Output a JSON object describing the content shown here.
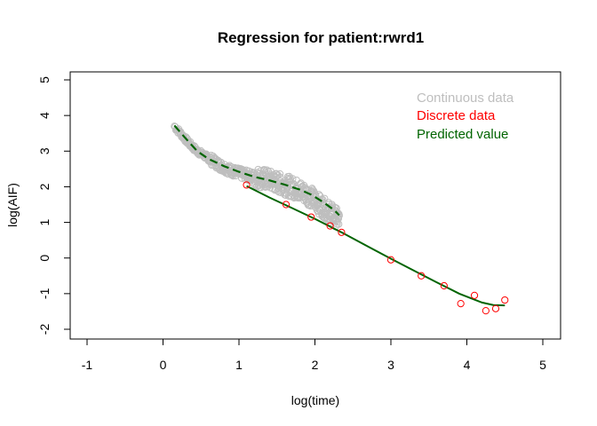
{
  "chart_data": {
    "type": "scatter",
    "title": "Regression for patient:rwrd1",
    "xlabel": "log(time)",
    "ylabel": "log(AIF)",
    "xlim": [
      -1,
      5
    ],
    "ylim": [
      -2,
      5
    ],
    "x_ticks": [
      -1,
      0,
      1,
      2,
      3,
      4,
      5
    ],
    "y_ticks": [
      -2,
      -1,
      0,
      1,
      2,
      3,
      4,
      5
    ],
    "grid": false,
    "legend_placement": "top-right",
    "legend": [
      {
        "label": "Continuous data",
        "color": "#bebebe"
      },
      {
        "label": "Discrete data",
        "color": "#ff0000"
      },
      {
        "label": "Predicted value",
        "color": "#006400"
      }
    ],
    "series": [
      {
        "name": "Continuous data",
        "kind": "points",
        "color": "#bebebe",
        "trend": [
          [
            0.15,
            3.7
          ],
          [
            0.25,
            3.45
          ],
          [
            0.35,
            3.2
          ],
          [
            0.45,
            3.0
          ],
          [
            0.6,
            2.8
          ],
          [
            0.75,
            2.6
          ],
          [
            0.9,
            2.45
          ],
          [
            1.05,
            2.35
          ],
          [
            1.2,
            2.28
          ],
          [
            1.35,
            2.22
          ],
          [
            1.5,
            2.12
          ],
          [
            1.65,
            2.02
          ],
          [
            1.8,
            1.9
          ],
          [
            1.95,
            1.72
          ],
          [
            2.05,
            1.52
          ],
          [
            2.15,
            1.35
          ],
          [
            2.25,
            1.2
          ],
          [
            2.32,
            1.05
          ]
        ]
      },
      {
        "name": "Discrete data",
        "kind": "points",
        "color": "#ff0000",
        "x": [
          1.1,
          1.62,
          1.95,
          2.2,
          2.35,
          3.0,
          3.4,
          3.7,
          3.92,
          4.1,
          4.25,
          4.38,
          4.5
        ],
        "y": [
          2.05,
          1.5,
          1.15,
          0.9,
          0.72,
          -0.05,
          -0.5,
          -0.78,
          -1.28,
          -1.05,
          -1.48,
          -1.42,
          -1.18
        ]
      },
      {
        "name": "Predicted value",
        "kind": "line",
        "color": "#006400",
        "x": [
          1.1,
          1.4,
          1.7,
          2.0,
          2.35,
          2.7,
          3.0,
          3.3,
          3.6,
          3.9,
          4.2,
          4.35,
          4.5
        ],
        "y": [
          2.02,
          1.7,
          1.4,
          1.1,
          0.72,
          0.32,
          -0.02,
          -0.35,
          -0.68,
          -1.0,
          -1.25,
          -1.32,
          -1.33
        ]
      },
      {
        "name": "Predicted value (continuous)",
        "kind": "dashed-line",
        "color": "#006400",
        "x": [
          0.15,
          0.3,
          0.45,
          0.6,
          0.8,
          1.0,
          1.2,
          1.4,
          1.6,
          1.8,
          1.95,
          2.1,
          2.25,
          2.32
        ],
        "y": [
          3.72,
          3.35,
          3.0,
          2.78,
          2.58,
          2.42,
          2.28,
          2.18,
          2.06,
          1.92,
          1.78,
          1.58,
          1.35,
          1.2
        ]
      }
    ]
  }
}
